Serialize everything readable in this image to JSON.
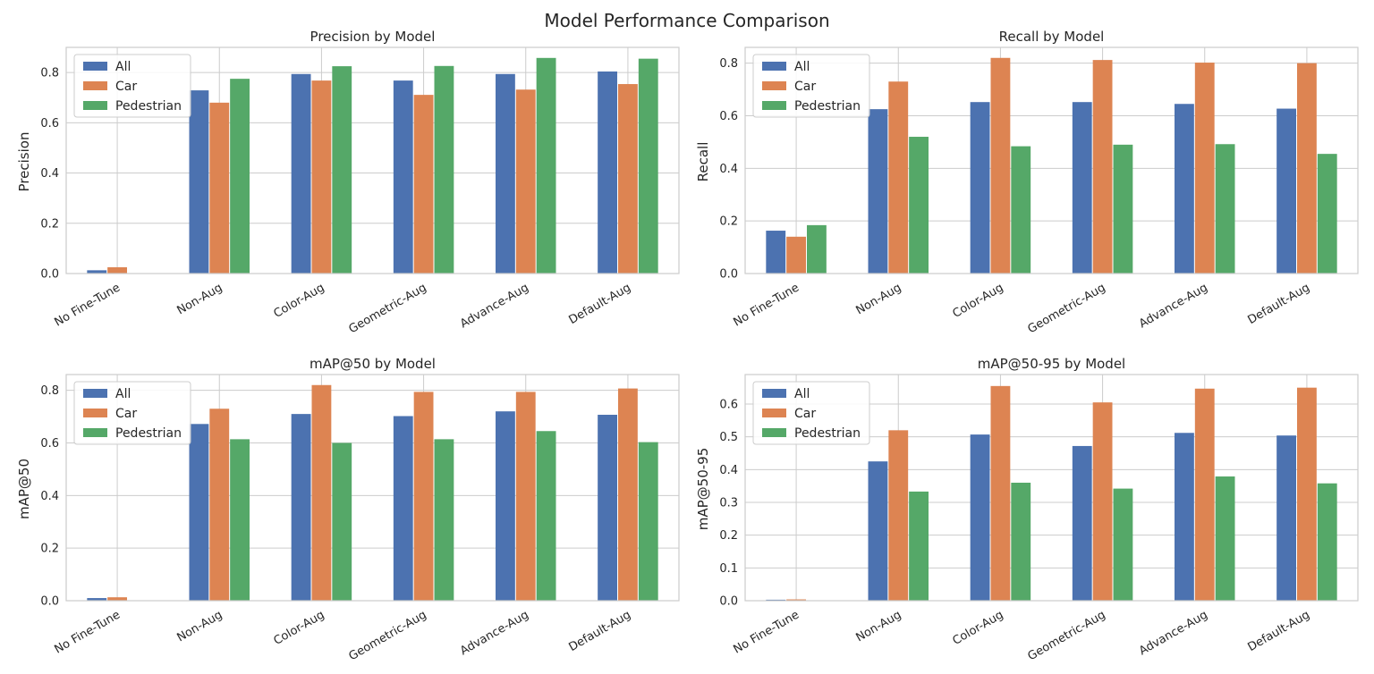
{
  "title": "Model Performance Comparison",
  "colors": {
    "All": "#4c72b0",
    "Car": "#dd8452",
    "Pedestrian": "#55a868"
  },
  "chart_data": [
    {
      "type": "bar",
      "title": "Precision by Model",
      "ylabel": "Precision",
      "ylim": [
        0,
        0.9
      ],
      "yticks": [
        0.0,
        0.2,
        0.4,
        0.6,
        0.8
      ],
      "grid": true,
      "legend": "top-left",
      "categories": [
        "No Fine-Tune",
        "Non-Aug",
        "Color-Aug",
        "Geometric-Aug",
        "Advance-Aug",
        "Default-Aug"
      ],
      "series": [
        {
          "name": "All",
          "values": [
            0.013,
            0.729,
            0.794,
            0.768,
            0.794,
            0.804
          ]
        },
        {
          "name": "Car",
          "values": [
            0.025,
            0.68,
            0.768,
            0.711,
            0.732,
            0.754
          ]
        },
        {
          "name": "Pedestrian",
          "values": [
            0.0,
            0.775,
            0.825,
            0.826,
            0.858,
            0.855
          ]
        }
      ]
    },
    {
      "type": "bar",
      "title": "Recall by Model",
      "ylabel": "Recall",
      "ylim": [
        0,
        0.86
      ],
      "yticks": [
        0.0,
        0.2,
        0.4,
        0.6,
        0.8
      ],
      "grid": true,
      "legend": "top-left",
      "categories": [
        "No Fine-Tune",
        "Non-Aug",
        "Color-Aug",
        "Geometric-Aug",
        "Advance-Aug",
        "Default-Aug"
      ],
      "series": [
        {
          "name": "All",
          "values": [
            0.163,
            0.625,
            0.652,
            0.652,
            0.645,
            0.627
          ]
        },
        {
          "name": "Car",
          "values": [
            0.14,
            0.73,
            0.82,
            0.812,
            0.802,
            0.8
          ]
        },
        {
          "name": "Pedestrian",
          "values": [
            0.184,
            0.52,
            0.484,
            0.49,
            0.492,
            0.455
          ]
        }
      ]
    },
    {
      "type": "bar",
      "title": "mAP@50 by Model",
      "ylabel": "mAP@50",
      "ylim": [
        0,
        0.86
      ],
      "yticks": [
        0.0,
        0.2,
        0.4,
        0.6,
        0.8
      ],
      "grid": true,
      "legend": "top-left",
      "categories": [
        "No Fine-Tune",
        "Non-Aug",
        "Color-Aug",
        "Geometric-Aug",
        "Advance-Aug",
        "Default-Aug"
      ],
      "series": [
        {
          "name": "All",
          "values": [
            0.01,
            0.672,
            0.71,
            0.702,
            0.72,
            0.707
          ]
        },
        {
          "name": "Car",
          "values": [
            0.013,
            0.73,
            0.82,
            0.794,
            0.794,
            0.807
          ]
        },
        {
          "name": "Pedestrian",
          "values": [
            0.0,
            0.614,
            0.6,
            0.614,
            0.645,
            0.603
          ]
        }
      ]
    },
    {
      "type": "bar",
      "title": "mAP@50-95 by Model",
      "ylabel": "mAP@50-95",
      "ylim": [
        0,
        0.69
      ],
      "yticks": [
        0.0,
        0.1,
        0.2,
        0.3,
        0.4,
        0.5,
        0.6
      ],
      "grid": true,
      "legend": "top-left",
      "categories": [
        "No Fine-Tune",
        "Non-Aug",
        "Color-Aug",
        "Geometric-Aug",
        "Advance-Aug",
        "Default-Aug"
      ],
      "series": [
        {
          "name": "All",
          "values": [
            0.003,
            0.425,
            0.507,
            0.472,
            0.512,
            0.504
          ]
        },
        {
          "name": "Car",
          "values": [
            0.004,
            0.52,
            0.655,
            0.605,
            0.647,
            0.65
          ]
        },
        {
          "name": "Pedestrian",
          "values": [
            0.0,
            0.333,
            0.36,
            0.342,
            0.379,
            0.358
          ]
        }
      ]
    }
  ]
}
